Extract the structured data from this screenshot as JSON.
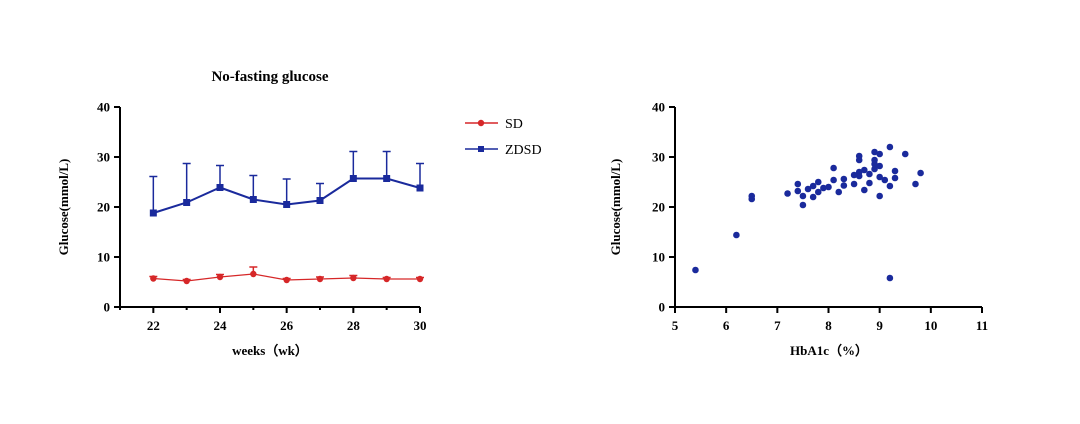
{
  "chart_data": [
    {
      "type": "line",
      "title": "No-fasting glucose",
      "xlabel": "weeks（wk）",
      "ylabel": "Glucose(mmol/L)",
      "xlim": [
        21,
        30
      ],
      "ylim": [
        0,
        40
      ],
      "x_ticks": [
        22,
        24,
        26,
        28,
        30
      ],
      "y_ticks": [
        0,
        10,
        20,
        30,
        40
      ],
      "x": [
        22,
        23,
        24,
        25,
        26,
        27,
        28,
        29,
        30
      ],
      "legend_position": "right",
      "series": [
        {
          "name": "SD",
          "color": "#d62728",
          "marker": "circle",
          "values": [
            5.7,
            5.2,
            6.0,
            6.6,
            5.4,
            5.6,
            5.8,
            5.6,
            5.6
          ],
          "error_up": [
            0.4,
            0.3,
            0.5,
            1.4,
            0.3,
            0.4,
            0.5,
            0.3,
            0.3
          ]
        },
        {
          "name": "ZDSD",
          "color": "#1a2a9c",
          "marker": "square",
          "values": [
            18.8,
            20.9,
            23.9,
            21.5,
            20.5,
            21.3,
            25.7,
            25.7,
            23.8
          ],
          "error_up": [
            7.3,
            7.8,
            4.4,
            4.8,
            5.1,
            3.4,
            5.4,
            5.4,
            4.9
          ]
        }
      ]
    },
    {
      "type": "scatter",
      "title": "",
      "xlabel": "HbA1c（%）",
      "ylabel": "Glucose(mmol/L)",
      "xlim": [
        5,
        11
      ],
      "ylim": [
        0,
        40
      ],
      "x_ticks": [
        5,
        6,
        7,
        8,
        9,
        10,
        11
      ],
      "y_ticks": [
        0,
        10,
        20,
        30,
        40
      ],
      "color": "#1a2a9c",
      "points": [
        [
          5.4,
          7.4
        ],
        [
          6.2,
          14.4
        ],
        [
          6.5,
          21.6
        ],
        [
          6.5,
          22.2
        ],
        [
          7.2,
          22.7
        ],
        [
          7.4,
          23.2
        ],
        [
          7.4,
          24.6
        ],
        [
          7.5,
          20.4
        ],
        [
          7.5,
          22.2
        ],
        [
          7.6,
          23.6
        ],
        [
          7.7,
          22.0
        ],
        [
          7.7,
          24.2
        ],
        [
          7.8,
          23.0
        ],
        [
          7.8,
          25.0
        ],
        [
          7.9,
          23.8
        ],
        [
          8.0,
          24.0
        ],
        [
          8.1,
          25.4
        ],
        [
          8.1,
          27.8
        ],
        [
          8.2,
          23.0
        ],
        [
          8.3,
          24.3
        ],
        [
          8.3,
          25.6
        ],
        [
          8.5,
          26.4
        ],
        [
          8.5,
          24.6
        ],
        [
          8.6,
          27.0
        ],
        [
          8.6,
          29.4
        ],
        [
          8.6,
          30.2
        ],
        [
          8.6,
          26.2
        ],
        [
          8.7,
          27.4
        ],
        [
          8.7,
          23.4
        ],
        [
          8.8,
          24.8
        ],
        [
          8.8,
          26.6
        ],
        [
          8.9,
          27.6
        ],
        [
          8.9,
          28.6
        ],
        [
          8.9,
          29.4
        ],
        [
          8.9,
          31.0
        ],
        [
          9.0,
          30.6
        ],
        [
          9.0,
          28.2
        ],
        [
          9.0,
          26.0
        ],
        [
          9.0,
          22.2
        ],
        [
          9.1,
          25.4
        ],
        [
          9.2,
          32.0
        ],
        [
          9.2,
          24.2
        ],
        [
          9.2,
          5.8
        ],
        [
          9.3,
          27.2
        ],
        [
          9.3,
          25.8
        ],
        [
          9.5,
          30.6
        ],
        [
          9.7,
          24.6
        ],
        [
          9.8,
          26.8
        ]
      ]
    }
  ]
}
